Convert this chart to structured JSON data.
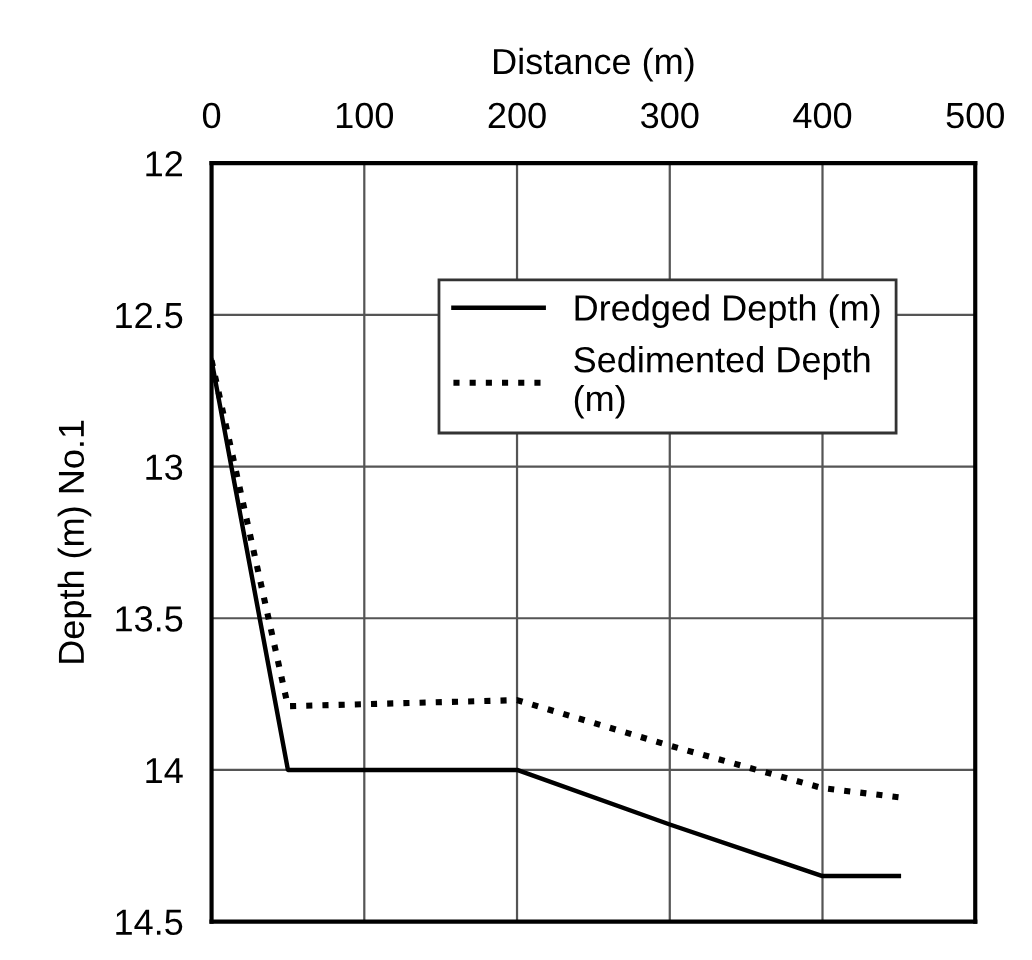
{
  "chart_data": {
    "type": "line",
    "xlabel": "Distance (m)",
    "ylabel": "Depth (m) No.1",
    "xlim": [
      0,
      500
    ],
    "xticks": [
      0,
      100,
      200,
      300,
      400,
      500
    ],
    "ylim": [
      14.5,
      12
    ],
    "yticks": [
      12,
      12.5,
      13,
      13.5,
      14,
      14.5
    ],
    "grid": true,
    "legend": "top right",
    "marker": "none",
    "series": [
      {
        "name": "Dredged Depth (m)",
        "color": "#000000",
        "line_style": "solid",
        "x": [
          0,
          50,
          200,
          300,
          400,
          450
        ],
        "values": [
          12.65,
          14.0,
          14.0,
          14.18,
          14.35,
          14.35
        ]
      },
      {
        "name": "Sedimented Depth\n(m)",
        "color": "#000000",
        "line_style": "dotted",
        "x": [
          0,
          50,
          200,
          300,
          400,
          450
        ],
        "values": [
          12.65,
          13.79,
          13.77,
          13.92,
          14.06,
          14.09
        ]
      }
    ]
  }
}
